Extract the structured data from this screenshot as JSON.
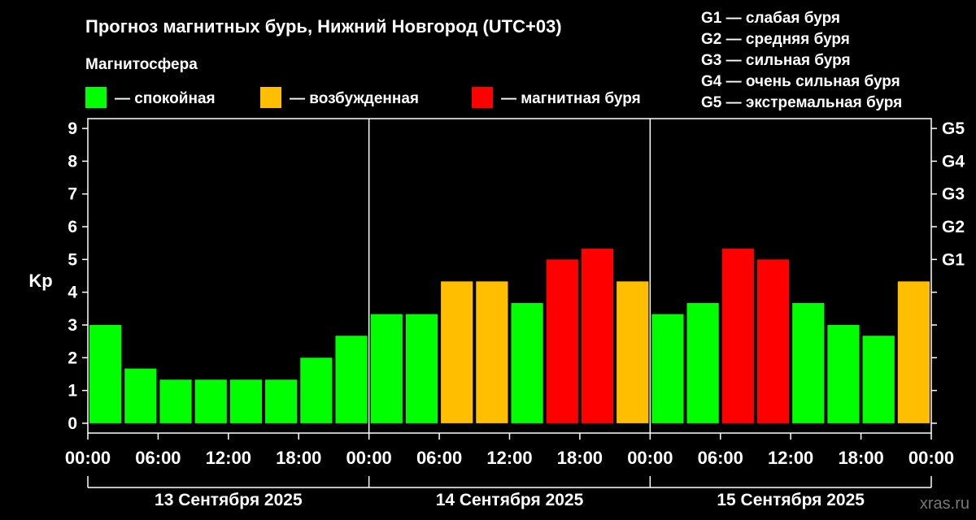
{
  "title": "Прогноз магнитных бурь, Нижний Новгород (UTC+03)",
  "legend": {
    "heading": "Магнитосфера",
    "items": [
      {
        "label": "— спокойная",
        "color": "#00ff00"
      },
      {
        "label": "— возбужденная",
        "color": "#ffbf00"
      },
      {
        "label": "— магнитная буря",
        "color": "#ff0000"
      }
    ]
  },
  "g_scale": [
    "G1 — слабая буря",
    "G2 — средняя буря",
    "G3 — сильная буря",
    "G4 — очень сильная буря",
    "G5 — экстремальная буря"
  ],
  "watermark": "xras.ru",
  "chart_data": {
    "type": "bar",
    "ylabel": "Kp",
    "ylim": [
      -0.3,
      9.3
    ],
    "y_ticks": [
      "0",
      "1",
      "2",
      "3",
      "4",
      "5",
      "6",
      "7",
      "8",
      "9"
    ],
    "y2_labels": [
      {
        "value": 5,
        "label": "G1"
      },
      {
        "value": 6,
        "label": "G2"
      },
      {
        "value": 7,
        "label": "G3"
      },
      {
        "value": 8,
        "label": "G4"
      },
      {
        "value": 9,
        "label": "G5"
      }
    ],
    "x_ticks": [
      "00:00",
      "06:00",
      "12:00",
      "18:00",
      "00:00",
      "06:00",
      "12:00",
      "18:00",
      "00:00",
      "06:00",
      "12:00",
      "18:00",
      "00:00"
    ],
    "days": [
      "13 Сентября 2025",
      "14 Сентября 2025",
      "15 Сентября 2025"
    ],
    "bars_per_day": 8,
    "values": [
      3.0,
      1.67,
      1.33,
      1.33,
      1.33,
      1.33,
      2.0,
      2.67,
      3.33,
      3.33,
      4.33,
      4.33,
      3.67,
      5.0,
      5.33,
      4.33,
      3.33,
      3.67,
      5.33,
      5.0,
      3.67,
      3.0,
      2.67,
      4.33
    ],
    "level_colors": {
      "calm": "#00ff00",
      "active": "#ffbf00",
      "storm": "#ff0000"
    },
    "grid": false,
    "legend_position": "top-left"
  }
}
